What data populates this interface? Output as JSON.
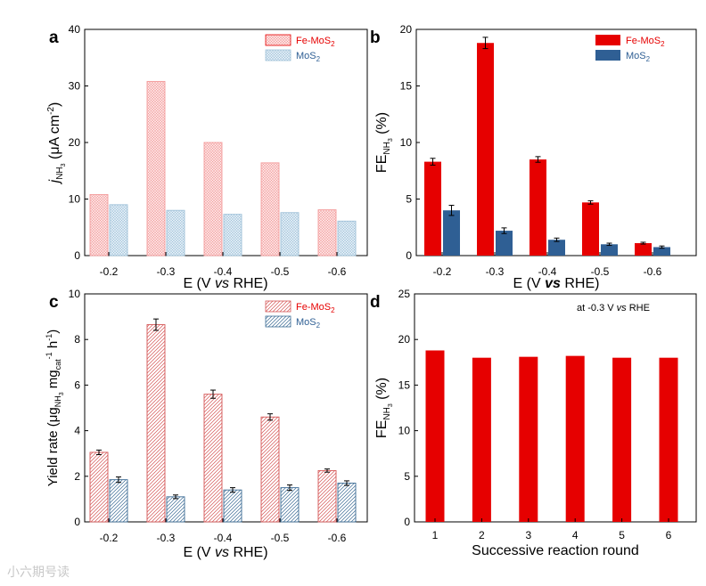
{
  "watermark": "小六期号读",
  "colors": {
    "fe": "#e60000",
    "mos2": "#2f5f94",
    "fe_light": "#f39b9b",
    "mos2_light": "#9ec0d8",
    "fe_fill": "#fde3e3",
    "mos2_fill": "#e3eef6"
  },
  "chart_data": [
    {
      "panel": "a",
      "type": "bar",
      "style": "crosshatch",
      "categories": [
        "-0.2",
        "-0.3",
        "-0.4",
        "-0.5",
        "-0.6"
      ],
      "series": [
        {
          "name": "Fe-MoS2",
          "values": [
            10.8,
            30.8,
            20.0,
            16.4,
            8.1
          ]
        },
        {
          "name": "MoS2",
          "values": [
            9.0,
            8.0,
            7.3,
            7.6,
            6.1
          ]
        }
      ],
      "xlabel": "E (V vs RHE)",
      "ylabel": "j NH3 (μA cm⁻²)",
      "ylim": [
        0,
        40
      ],
      "yticks": [
        "0",
        "10",
        "20",
        "30",
        "40"
      ],
      "legend_position": "top-right"
    },
    {
      "panel": "b",
      "type": "bar",
      "style": "solid",
      "categories": [
        "-0.2",
        "-0.3",
        "-0.4",
        "-0.5",
        "-0.6"
      ],
      "series": [
        {
          "name": "Fe-MoS2",
          "values": [
            8.3,
            18.8,
            8.5,
            4.7,
            1.1
          ],
          "errors": [
            0.3,
            0.5,
            0.25,
            0.15,
            0.08
          ]
        },
        {
          "name": "MoS2",
          "values": [
            4.0,
            2.2,
            1.4,
            1.0,
            0.75
          ],
          "errors": [
            0.45,
            0.25,
            0.15,
            0.1,
            0.1
          ]
        }
      ],
      "xlabel": "E (V vs RHE)",
      "ylabel": "FE NH3 (%)",
      "ylim": [
        0,
        20
      ],
      "yticks": [
        "0",
        "5",
        "10",
        "15",
        "20"
      ],
      "legend_position": "top-right"
    },
    {
      "panel": "c",
      "type": "bar",
      "style": "hatch",
      "categories": [
        "-0.2",
        "-0.3",
        "-0.4",
        "-0.5",
        "-0.6"
      ],
      "series": [
        {
          "name": "Fe-MoS2",
          "values": [
            3.05,
            8.65,
            5.6,
            4.6,
            2.25
          ],
          "errors": [
            0.1,
            0.25,
            0.18,
            0.14,
            0.07
          ]
        },
        {
          "name": "MoS2",
          "values": [
            1.85,
            1.1,
            1.4,
            1.5,
            1.7
          ],
          "errors": [
            0.12,
            0.08,
            0.1,
            0.12,
            0.1
          ]
        }
      ],
      "xlabel": "E (V vs RHE)",
      "ylabel": "Yield rate (μg NH3 mg cat⁻¹ h⁻¹)",
      "ylim": [
        0,
        10
      ],
      "yticks": [
        "0",
        "2",
        "4",
        "6",
        "8",
        "10"
      ],
      "legend_position": "top-right"
    },
    {
      "panel": "d",
      "type": "bar",
      "style": "solid",
      "categories": [
        "1",
        "2",
        "3",
        "4",
        "5",
        "6"
      ],
      "series": [
        {
          "name": "Fe-MoS2",
          "values": [
            18.8,
            18.0,
            18.1,
            18.2,
            18.0,
            18.0
          ]
        }
      ],
      "xlabel": "Successive reaction round",
      "ylabel": "FE NH3 (%)",
      "ylim": [
        0,
        25
      ],
      "yticks": [
        "0",
        "5",
        "10",
        "15",
        "20",
        "25"
      ],
      "annotation": "at -0.3 V vs RHE"
    }
  ]
}
